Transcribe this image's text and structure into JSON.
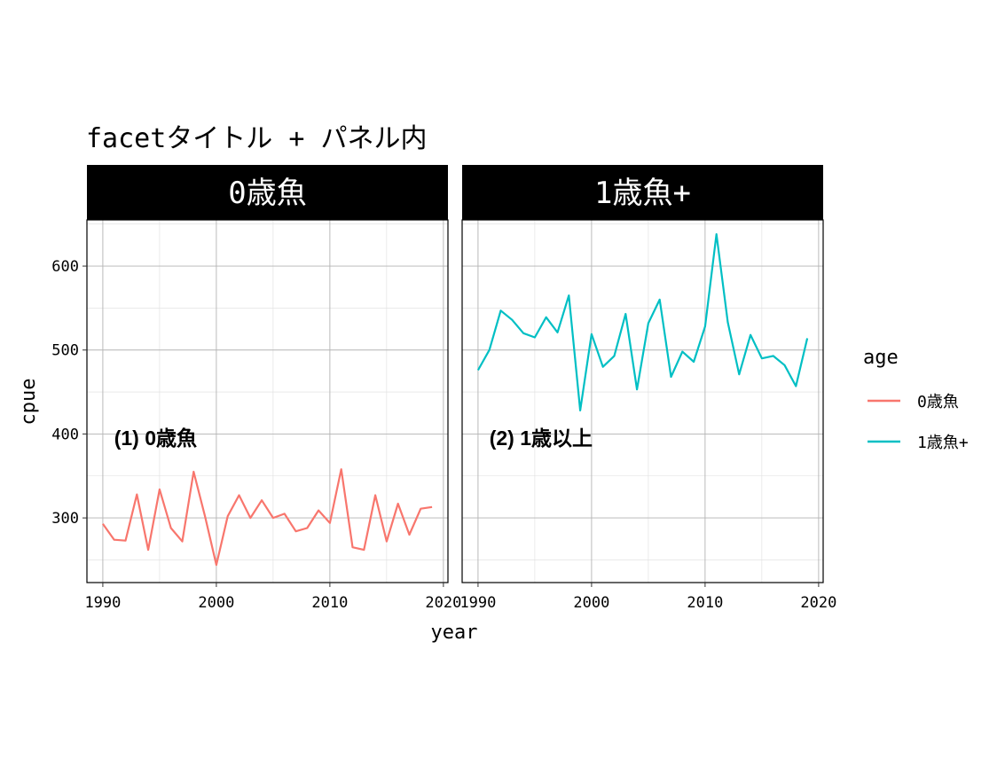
{
  "chart_data": {
    "type": "line",
    "title": "facetタイトル + パネル内",
    "xlabel": "year",
    "ylabel": "cpue",
    "xlim": [
      1988.6,
      2020.4
    ],
    "ylim": [
      223,
      655
    ],
    "x_ticks": [
      1990,
      2000,
      2010,
      2020
    ],
    "y_ticks": [
      300,
      400,
      500,
      600
    ],
    "grid": true,
    "legend": {
      "title": "age",
      "placement": "right",
      "entries": [
        "0歳魚",
        "1歳魚+"
      ]
    },
    "panels": [
      {
        "strip_label": "0歳魚",
        "annotation": "(1) 0歳魚",
        "annotation_pos": {
          "x": 1991,
          "y": 395
        },
        "series": [
          {
            "name": "0歳魚",
            "color": "#F8766D",
            "x": [
              1990,
              1991,
              1992,
              1993,
              1994,
              1995,
              1996,
              1997,
              1998,
              1999,
              2000,
              2001,
              2002,
              2003,
              2004,
              2005,
              2006,
              2007,
              2008,
              2009,
              2010,
              2011,
              2012,
              2013,
              2014,
              2015,
              2016,
              2017,
              2018,
              2019
            ],
            "y": [
              293,
              274,
              273,
              328,
              262,
              334,
              288,
              272,
              355,
              302,
              244,
              302,
              327,
              300,
              321,
              300,
              305,
              284,
              288,
              309,
              294,
              358,
              265,
              262,
              327,
              272,
              317,
              280,
              311,
              313
            ]
          }
        ]
      },
      {
        "strip_label": "1歳魚+",
        "annotation": "(2) 1歳以上",
        "annotation_pos": {
          "x": 1991,
          "y": 395
        },
        "series": [
          {
            "name": "1歳魚+",
            "color": "#00BFC4",
            "x": [
              1990,
              1991,
              1992,
              1993,
              1994,
              1995,
              1996,
              1997,
              1998,
              1999,
              2000,
              2001,
              2002,
              2003,
              2004,
              2005,
              2006,
              2007,
              2008,
              2009,
              2010,
              2011,
              2012,
              2013,
              2014,
              2015,
              2016,
              2017,
              2018,
              2019
            ],
            "y": [
              476,
              500,
              547,
              536,
              520,
              515,
              539,
              521,
              565,
              428,
              519,
              480,
              493,
              543,
              453,
              532,
              560,
              468,
              498,
              486,
              528,
              638,
              533,
              471,
              518,
              490,
              493,
              482,
              457,
              514
            ]
          }
        ]
      }
    ]
  }
}
